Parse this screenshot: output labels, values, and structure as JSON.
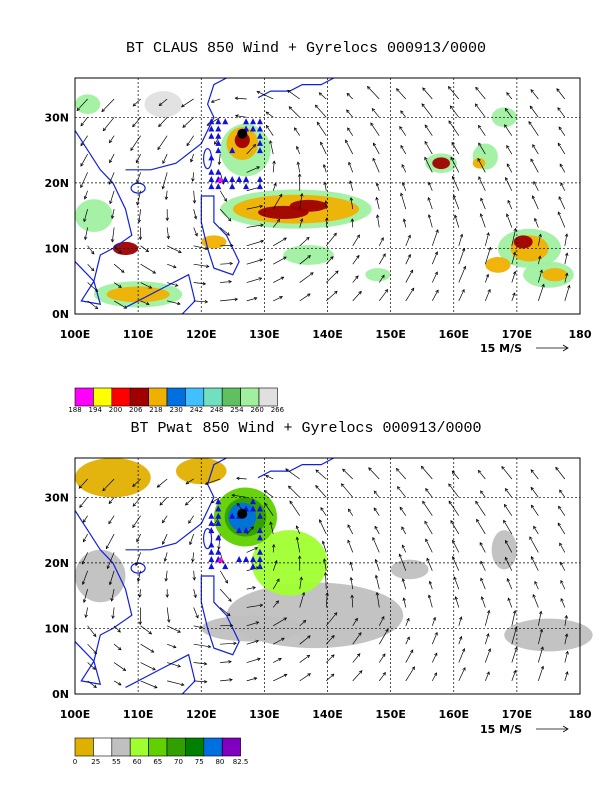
{
  "chart_data": [
    {
      "type": "heatmap",
      "title": "BT CLAUS 850 Wind + Gyrelocs 000913/0000",
      "x_ticks": [
        "100E",
        "110E",
        "120E",
        "130E",
        "140E",
        "150E",
        "160E",
        "170E",
        "180"
      ],
      "y_ticks": [
        "0N",
        "10N",
        "20N",
        "30N"
      ],
      "xlim": [
        100,
        180
      ],
      "ylim": [
        0,
        36
      ],
      "grid": true,
      "reference_vector": "15 M/S",
      "colorbar": {
        "labels": [
          "188",
          "194",
          "200",
          "206",
          "218",
          "230",
          "242",
          "248",
          "254",
          "260",
          "266"
        ],
        "colors": [
          "#ff00ff",
          "#ffff00",
          "#ff0000",
          "#a00000",
          "#f0b000",
          "#0070e0",
          "#40c0ff",
          "#70e0c0",
          "#60c060",
          "#a0f0a0",
          "#e0e0e0"
        ]
      },
      "cyclone_center": {
        "lon": 126.5,
        "lat": 27.5
      },
      "marker_triangle": {
        "lon": 123,
        "lat": 20.5,
        "color": "#ff00ff"
      }
    },
    {
      "type": "heatmap",
      "title": "BT Pwat 850 Wind + Gyrelocs 000913/0000",
      "x_ticks": [
        "100E",
        "110E",
        "120E",
        "130E",
        "140E",
        "150E",
        "160E",
        "170E",
        "180"
      ],
      "y_ticks": [
        "0N",
        "10N",
        "20N",
        "30N"
      ],
      "xlim": [
        100,
        180
      ],
      "ylim": [
        0,
        36
      ],
      "grid": true,
      "reference_vector": "15 M/S",
      "colorbar": {
        "labels": [
          "0",
          "25",
          "55",
          "60",
          "65",
          "70",
          "75",
          "80",
          "82.5"
        ],
        "colors": [
          "#e0b000",
          "#ffffff",
          "#c0c0c0",
          "#a0ff30",
          "#60d000",
          "#30a000",
          "#008000",
          "#0070e0",
          "#8000c0"
        ]
      },
      "cyclone_center": {
        "lon": 126.5,
        "lat": 27.5
      },
      "marker_triangle": {
        "lon": 123,
        "lat": 20.5,
        "color": "#ff00ff"
      }
    }
  ]
}
